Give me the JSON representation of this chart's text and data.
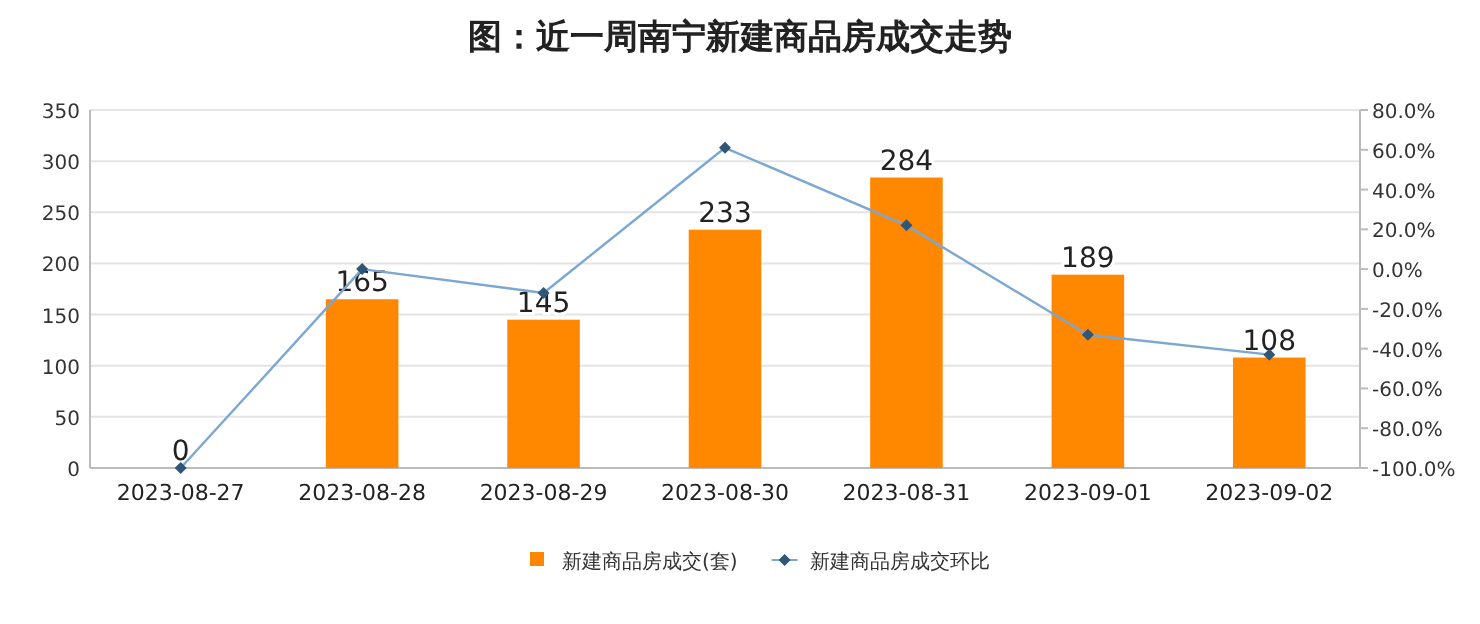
{
  "chart_data": {
    "type": "bar",
    "title": "图：近一周南宁新建商品房成交走势",
    "categories": [
      "2023-08-27",
      "2023-08-28",
      "2023-08-29",
      "2023-08-30",
      "2023-08-31",
      "2023-09-01",
      "2023-09-02"
    ],
    "series": [
      {
        "name": "新建商品房成交(套)",
        "color": "#ff8800",
        "values": [
          0,
          165,
          145,
          233,
          284,
          189,
          108
        ],
        "data_labels": true
      },
      {
        "name": "新建商品房成交环比",
        "type": "line",
        "axis": "y2",
        "color": "#7ba7d1",
        "marker": "diamond",
        "values": [
          -100,
          0,
          -12,
          61,
          22,
          -33,
          -43
        ]
      }
    ],
    "ylim": [
      0,
      350
    ],
    "yticks": [
      0,
      50,
      100,
      150,
      200,
      250,
      300,
      350
    ],
    "y2lim": [
      -100,
      80
    ],
    "y2ticks": [
      {
        "value": -100,
        "label": "-100.0%"
      },
      {
        "value": -80,
        "label": "-80.0%"
      },
      {
        "value": -60,
        "label": "-60.0%"
      },
      {
        "value": -40,
        "label": "-40.0%"
      },
      {
        "value": -20,
        "label": "-20.0%"
      },
      {
        "value": 0,
        "label": "0.0%"
      },
      {
        "value": 20,
        "label": "20.0%"
      },
      {
        "value": 40,
        "label": "40.0%"
      },
      {
        "value": 60,
        "label": "60.0%"
      },
      {
        "value": 80,
        "label": "80.0%"
      }
    ],
    "grid": "y",
    "legend": "bottom"
  }
}
